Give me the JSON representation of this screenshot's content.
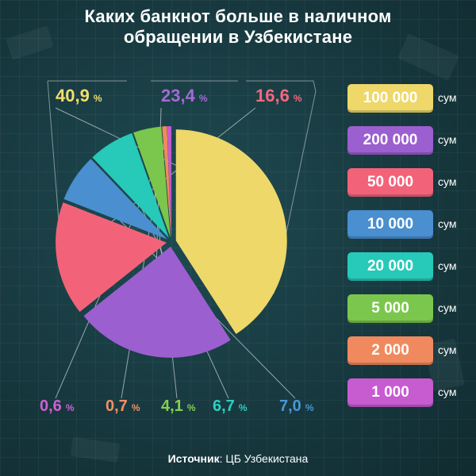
{
  "title_line1": "Каких банкнот больше в наличном",
  "title_line2": "обращении в Узбекистане",
  "source_label": "Источник",
  "source_text": ": ЦБ Узбекистана",
  "chart_data": {
    "type": "pie",
    "title": "Каких банкнот больше в наличном обращении в Узбекистане",
    "unit": "%",
    "legend_position": "right",
    "currency_label": "сум",
    "slices": [
      {
        "label": "100 000",
        "value": 40.9,
        "display": "40,9",
        "color": "#eed86a",
        "text_color": "#f2de6f"
      },
      {
        "label": "200 000",
        "value": 23.4,
        "display": "23,4",
        "color": "#9b5fcf",
        "text_color": "#a46ad6"
      },
      {
        "label": "50 000",
        "value": 16.6,
        "display": "16,6",
        "color": "#f2637a",
        "text_color": "#f4687f"
      },
      {
        "label": "10 000",
        "value": 7.0,
        "display": "7,0",
        "color": "#4a8fcf",
        "text_color": "#4a96d8"
      },
      {
        "label": "20 000",
        "value": 6.7,
        "display": "6,7",
        "color": "#27c9b8",
        "text_color": "#2dd0bf"
      },
      {
        "label": "5 000",
        "value": 4.1,
        "display": "4,1",
        "color": "#7bc74d",
        "text_color": "#84cf54"
      },
      {
        "label": "2 000",
        "value": 0.7,
        "display": "0,7",
        "color": "#f08a5e",
        "text_color": "#f39064"
      },
      {
        "label": "1 000",
        "value": 0.6,
        "display": "0,6",
        "color": "#c75bd0",
        "text_color": "#cc62d4"
      }
    ]
  }
}
